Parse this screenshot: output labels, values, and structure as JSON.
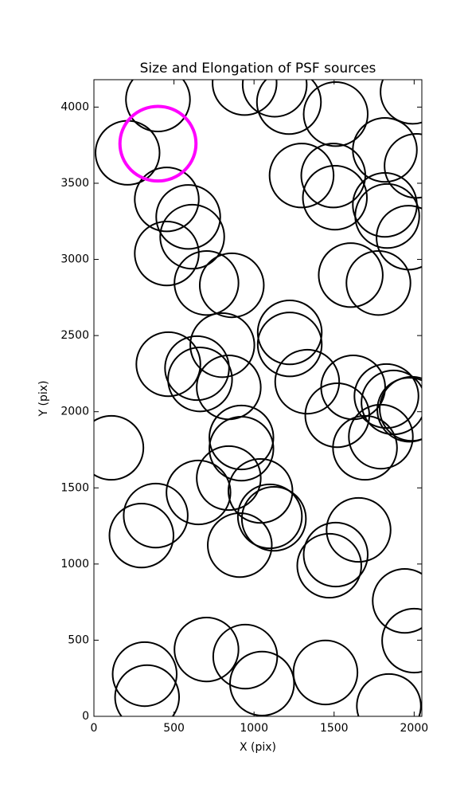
{
  "chart_data": {
    "type": "ellipse",
    "title": "Size and Elongation of PSF sources",
    "xlabel": "X (pix)",
    "ylabel": "Y (pix)",
    "xlim": [
      0,
      2048
    ],
    "ylim": [
      0,
      4180
    ],
    "xticks": [
      0,
      500,
      1000,
      1500,
      2000
    ],
    "yticks": [
      0,
      500,
      1000,
      1500,
      2000,
      2500,
      3000,
      3500,
      4000
    ],
    "series": [
      {
        "color": "#000000",
        "x": [
          210,
          400,
          455,
          589,
          614,
          455,
          703,
          861,
          802,
          465,
          644,
          663,
          842,
          109,
          921,
          921,
          842,
          653,
          1040,
          1099,
          1124,
          911,
          386,
          297,
          1223,
          1223,
          1332,
          1520,
          1619,
          1693,
          1792,
          1827,
          1871,
          1970,
          1985,
          1653,
          1510,
          1470,
          1941,
          2000,
          703,
          945,
          1050,
          317,
          332,
          1446,
          1842,
          941,
          1129,
          1218,
          1510,
          1297,
          1495,
          1505,
          1817,
          2015,
          1817,
          1832,
          1965,
          1604,
          1777,
          1990
        ],
        "y": [
          3700,
          4050,
          3394,
          3279,
          3149,
          3039,
          2845,
          2830,
          2437,
          2312,
          2286,
          2212,
          2160,
          1763,
          1831,
          1757,
          1564,
          1470,
          1480,
          1313,
          1297,
          1124,
          1318,
          1187,
          2521,
          2442,
          2197,
          1977,
          2160,
          1763,
          1836,
          2103,
          2061,
          2013,
          2019,
          1224,
          1062,
          989,
          758,
          497,
          439,
          392,
          215,
          277,
          126,
          288,
          68,
          4158,
          4147,
          4033,
          3954,
          3551,
          3551,
          3405,
          3719,
          3614,
          3358,
          3285,
          3143,
          2897,
          2845,
          4100
        ],
        "widths": [
          400,
          400,
          400,
          400,
          400,
          400,
          400,
          400,
          400,
          400,
          400,
          400,
          400,
          400,
          400,
          400,
          400,
          400,
          400,
          400,
          400,
          400,
          400,
          400,
          400,
          400,
          400,
          400,
          400,
          400,
          400,
          400,
          400,
          400,
          400,
          400,
          400,
          400,
          400,
          400,
          400,
          400,
          400,
          400,
          400,
          400,
          400,
          400,
          400,
          400,
          400,
          400,
          400,
          400,
          400,
          400,
          400,
          400,
          400,
          400,
          400,
          400
        ],
        "heights": [
          420,
          420,
          420,
          420,
          420,
          420,
          420,
          420,
          420,
          420,
          420,
          420,
          420,
          420,
          420,
          420,
          420,
          420,
          420,
          420,
          420,
          420,
          420,
          420,
          420,
          420,
          420,
          420,
          420,
          420,
          420,
          420,
          420,
          420,
          420,
          420,
          420,
          420,
          420,
          420,
          420,
          420,
          420,
          420,
          420,
          420,
          420,
          420,
          420,
          420,
          420,
          420,
          420,
          420,
          420,
          420,
          420,
          420,
          420,
          420,
          420,
          420
        ]
      },
      {
        "color": "#ff00ff",
        "x": [
          400
        ],
        "y": [
          3760
        ],
        "widths": [
          475
        ],
        "heights": [
          490
        ]
      }
    ]
  }
}
